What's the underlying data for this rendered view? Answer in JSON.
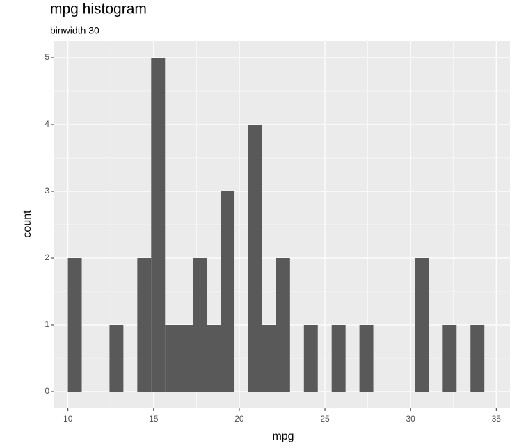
{
  "chart_data": {
    "type": "histogram",
    "title": "mpg histogram",
    "subtitle": "binwidth 30",
    "x_label": "mpg",
    "y_label": "count",
    "bins": [
      9.995,
      10.805,
      11.616,
      12.426,
      13.236,
      14.047,
      14.857,
      15.667,
      16.478,
      17.288,
      18.098,
      18.909,
      19.719,
      20.529,
      21.34,
      22.15,
      22.96,
      23.771,
      24.581,
      25.391,
      26.202,
      27.012,
      27.822,
      28.633,
      29.443,
      30.253,
      31.064,
      31.874,
      32.684,
      33.495,
      34.305
    ],
    "values": [
      2,
      0,
      0,
      1,
      0,
      2,
      5,
      1,
      1,
      2,
      1,
      3,
      0,
      4,
      1,
      2,
      0,
      1,
      0,
      1,
      0,
      1,
      0,
      0,
      0,
      2,
      0,
      1,
      0,
      1
    ],
    "color": "#595959",
    "xlim": [
      9.2,
      35.8
    ],
    "ylim": [
      -0.25,
      5.25
    ],
    "xticks": [
      10,
      15,
      20,
      25,
      30,
      35
    ],
    "yticks": [
      0,
      1,
      2,
      3,
      4,
      5
    ],
    "grid": true
  }
}
